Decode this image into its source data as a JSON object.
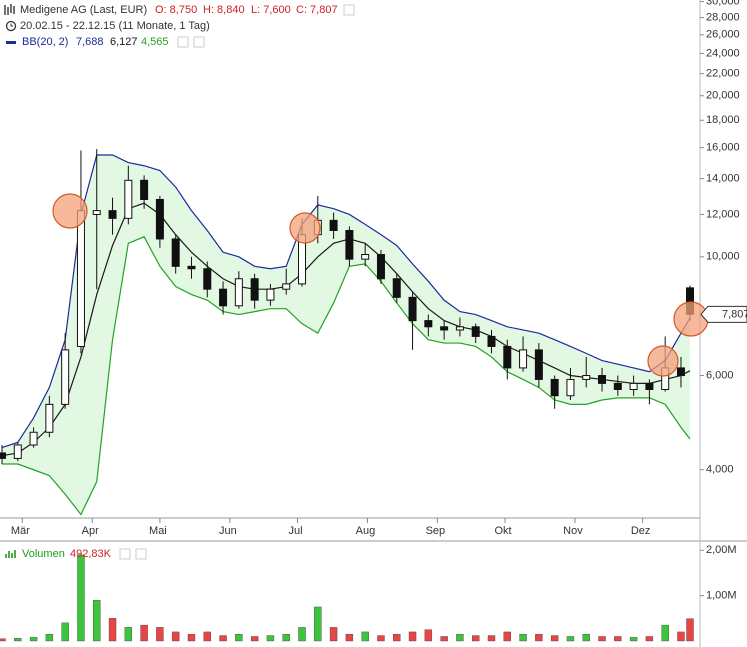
{
  "chart_data": [
    {
      "type": "candlestick",
      "title": "Medigene AG (Last, EUR)",
      "ohlc_labels": [
        "O: 8,750",
        "H: 8,840",
        "L: 7,600",
        "C: 7,807"
      ],
      "period": "20.02.15 - 22.12.15 (11 Monate, 1 Tag)",
      "indicator": {
        "label": "BB(20, 2)",
        "value_labels": [
          "7,688",
          "6,127",
          "4,565"
        ]
      },
      "last_price_label": "7,807",
      "x": [
        "2015-02-20",
        "2015-02-27",
        "2015-03-06",
        "2015-03-13",
        "2015-03-20",
        "2015-03-27",
        "2015-04-03",
        "2015-04-10",
        "2015-04-17",
        "2015-04-24",
        "2015-05-01",
        "2015-05-08",
        "2015-05-15",
        "2015-05-22",
        "2015-05-29",
        "2015-06-05",
        "2015-06-12",
        "2015-06-19",
        "2015-06-26",
        "2015-07-03",
        "2015-07-10",
        "2015-07-17",
        "2015-07-24",
        "2015-07-31",
        "2015-08-07",
        "2015-08-14",
        "2015-08-21",
        "2015-08-28",
        "2015-09-04",
        "2015-09-11",
        "2015-09-18",
        "2015-09-25",
        "2015-10-02",
        "2015-10-09",
        "2015-10-16",
        "2015-10-23",
        "2015-10-30",
        "2015-11-06",
        "2015-11-13",
        "2015-11-20",
        "2015-11-27",
        "2015-12-04",
        "2015-12-11",
        "2015-12-18",
        "2015-12-22"
      ],
      "open": [
        4.3,
        4.2,
        4.45,
        4.7,
        5.3,
        6.8,
        12.0,
        12.2,
        11.8,
        13.9,
        12.8,
        10.8,
        9.6,
        9.5,
        8.7,
        8.1,
        9.1,
        8.3,
        8.7,
        8.9,
        11.0,
        11.7,
        11.2,
        9.9,
        10.1,
        9.1,
        8.4,
        7.6,
        7.4,
        7.3,
        7.4,
        7.1,
        6.8,
        6.2,
        6.7,
        5.9,
        5.5,
        5.9,
        6.0,
        5.8,
        5.65,
        5.8,
        5.65,
        6.2,
        8.75
      ],
      "high": [
        4.45,
        4.5,
        4.8,
        5.5,
        7.2,
        15.8,
        15.9,
        12.9,
        14.8,
        14.2,
        13.0,
        11.0,
        10.0,
        9.8,
        9.0,
        9.4,
        9.3,
        8.9,
        9.5,
        11.8,
        13.0,
        12.1,
        11.4,
        10.6,
        10.3,
        9.3,
        8.6,
        7.8,
        7.6,
        7.7,
        7.5,
        7.3,
        7.0,
        7.1,
        6.9,
        6.0,
        6.2,
        6.5,
        6.2,
        6.0,
        6.0,
        5.9,
        7.1,
        6.5,
        8.84
      ],
      "low": [
        4.1,
        4.15,
        4.4,
        4.6,
        5.2,
        6.6,
        8.7,
        11.0,
        11.5,
        12.3,
        10.4,
        9.3,
        9.1,
        8.4,
        7.8,
        8.0,
        8.0,
        8.1,
        8.5,
        8.8,
        10.6,
        10.8,
        9.6,
        9.6,
        8.9,
        8.2,
        6.7,
        7.1,
        7.0,
        7.1,
        6.9,
        6.6,
        5.9,
        6.1,
        5.7,
        5.2,
        5.4,
        5.7,
        5.6,
        5.5,
        5.5,
        5.3,
        5.6,
        5.7,
        7.6
      ],
      "close": [
        4.2,
        4.45,
        4.7,
        5.3,
        6.7,
        12.2,
        12.2,
        11.8,
        13.9,
        12.8,
        10.8,
        9.6,
        9.5,
        8.7,
        8.1,
        9.1,
        8.3,
        8.7,
        8.9,
        11.0,
        11.7,
        11.2,
        9.9,
        10.1,
        9.1,
        8.4,
        7.6,
        7.4,
        7.3,
        7.4,
        7.1,
        6.8,
        6.2,
        6.7,
        5.9,
        5.5,
        5.9,
        6.0,
        5.8,
        5.65,
        5.8,
        5.65,
        6.2,
        6.0,
        7.807
      ],
      "bands": {
        "upper": [
          4.4,
          4.5,
          5.0,
          5.7,
          7.0,
          12.0,
          15.5,
          15.5,
          15.0,
          14.8,
          14.5,
          13.5,
          12.2,
          11.2,
          10.2,
          10.0,
          9.6,
          9.5,
          9.6,
          11.5,
          12.5,
          12.3,
          12.0,
          11.5,
          11.0,
          10.5,
          9.7,
          9.0,
          8.3,
          7.9,
          7.8,
          7.6,
          7.4,
          7.3,
          7.2,
          7.0,
          6.8,
          6.6,
          6.4,
          6.3,
          6.2,
          6.1,
          6.4,
          7.2,
          7.688
        ],
        "middle": [
          4.25,
          4.3,
          4.5,
          4.8,
          5.3,
          6.5,
          8.5,
          10.5,
          12.3,
          12.6,
          12.0,
          11.0,
          10.2,
          9.6,
          9.1,
          8.8,
          8.7,
          8.7,
          8.8,
          9.3,
          10.0,
          10.6,
          10.8,
          10.6,
          10.0,
          9.3,
          8.6,
          8.0,
          7.6,
          7.4,
          7.3,
          7.1,
          6.8,
          6.6,
          6.4,
          6.2,
          6.0,
          5.95,
          5.9,
          5.85,
          5.8,
          5.8,
          5.9,
          6.0,
          6.127
        ],
        "lower": [
          4.1,
          4.1,
          4.0,
          3.9,
          3.6,
          3.3,
          3.8,
          7.0,
          10.6,
          10.9,
          9.6,
          8.8,
          8.5,
          8.3,
          7.9,
          7.8,
          7.9,
          8.0,
          8.0,
          7.5,
          7.2,
          8.2,
          9.6,
          9.7,
          9.0,
          8.2,
          7.5,
          7.0,
          6.9,
          6.9,
          6.8,
          6.5,
          6.1,
          5.9,
          5.7,
          5.4,
          5.3,
          5.3,
          5.4,
          5.45,
          5.45,
          5.45,
          5.3,
          4.8,
          4.565
        ]
      },
      "colors": {
        "candle_up": "#ffffff",
        "candle_down": "#111111",
        "candle_line": "#111111",
        "band_fill": "#e2f8e2",
        "upper": "#1c2a9c",
        "middle": "#1a1a1a",
        "lower": "#22a322",
        "title": "#333333",
        "ohlc": "#d02020"
      },
      "xlim": [
        "2015-02-20",
        "2015-12-22"
      ],
      "xticks": [
        {
          "value": "2015-03-01",
          "label": "Mär"
        },
        {
          "value": "2015-04-01",
          "label": "Apr"
        },
        {
          "value": "2015-05-01",
          "label": "Mai"
        },
        {
          "value": "2015-06-01",
          "label": "Jun"
        },
        {
          "value": "2015-07-01",
          "label": "Jul"
        },
        {
          "value": "2015-08-01",
          "label": "Aug"
        },
        {
          "value": "2015-09-01",
          "label": "Sep"
        },
        {
          "value": "2015-10-01",
          "label": "Okt"
        },
        {
          "value": "2015-11-01",
          "label": "Nov"
        },
        {
          "value": "2015-12-01",
          "label": "Dez"
        }
      ],
      "ylim": [
        3.25,
        30.2
      ],
      "log_scale": true,
      "yticks": [
        {
          "value": 4,
          "label": "4,000"
        },
        {
          "value": 6,
          "label": "6,000"
        },
        {
          "value": 10,
          "label": "10,000"
        },
        {
          "value": 12,
          "label": "12,000"
        },
        {
          "value": 14,
          "label": "14,000"
        },
        {
          "value": 16,
          "label": "16,000"
        },
        {
          "value": 18,
          "label": "18,000"
        },
        {
          "value": 20,
          "label": "20,000"
        },
        {
          "value": 22,
          "label": "22,000"
        },
        {
          "value": 24,
          "label": "24,000"
        },
        {
          "value": 26,
          "label": "26,000"
        },
        {
          "value": 28,
          "label": "28,000"
        },
        {
          "value": 30,
          "label": "30,000"
        }
      ]
    },
    {
      "type": "bar",
      "title": "Volumen",
      "last_value_label": "492,83K",
      "values": [
        0.05,
        0.06,
        0.08,
        0.15,
        0.4,
        1.9,
        0.9,
        0.5,
        0.3,
        0.35,
        0.3,
        0.2,
        0.15,
        0.2,
        0.12,
        0.15,
        0.1,
        0.12,
        0.15,
        0.3,
        0.75,
        0.3,
        0.15,
        0.2,
        0.12,
        0.15,
        0.2,
        0.25,
        0.1,
        0.15,
        0.12,
        0.12,
        0.2,
        0.15,
        0.15,
        0.12,
        0.1,
        0.15,
        0.1,
        0.1,
        0.08,
        0.1,
        0.35,
        0.2,
        0.49283
      ],
      "colors": {
        "up": "#3cc43c",
        "down": "#e84545",
        "title": "#1e9a1e",
        "label": "#d02020"
      },
      "ylim": [
        0,
        2.05
      ],
      "yticks": [
        {
          "value": 1,
          "label": "1,00M"
        },
        {
          "value": 2,
          "label": "2,00M"
        }
      ]
    }
  ]
}
